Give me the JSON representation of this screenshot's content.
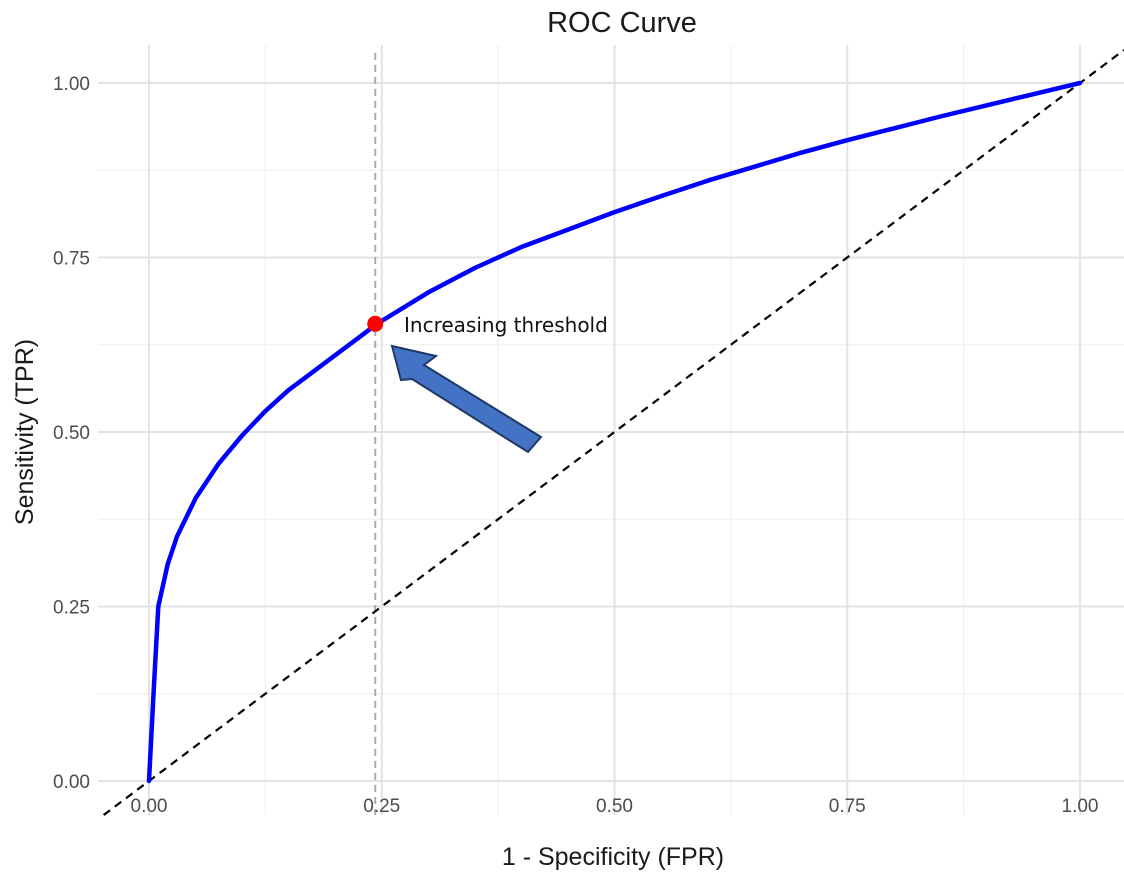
{
  "chart_data": {
    "type": "line",
    "title": "ROC Curve",
    "xlabel": "1 - Specificity (FPR)",
    "ylabel": "Sensitivity (TPR)",
    "xlim": [
      -0.05,
      1.05
    ],
    "ylim": [
      -0.05,
      1.05
    ],
    "x_ticks": [
      0,
      0.25,
      0.5,
      0.75,
      1
    ],
    "x_tick_labels": [
      "0.00",
      "0.25",
      "0.50",
      "0.75",
      "1.00"
    ],
    "y_ticks": [
      0,
      0.25,
      0.5,
      0.75,
      1
    ],
    "y_tick_labels": [
      "0.00",
      "0.25",
      "0.50",
      "0.75",
      "1.00"
    ],
    "grid": true,
    "series": [
      {
        "color": "#0000ff",
        "style": "solid",
        "points": [
          [
            0,
            0
          ],
          [
            0.005,
            0.13
          ],
          [
            0.01,
            0.25
          ],
          [
            0.02,
            0.31
          ],
          [
            0.03,
            0.35
          ],
          [
            0.05,
            0.405
          ],
          [
            0.075,
            0.455
          ],
          [
            0.1,
            0.495
          ],
          [
            0.125,
            0.53
          ],
          [
            0.15,
            0.56
          ],
          [
            0.175,
            0.585
          ],
          [
            0.2,
            0.61
          ],
          [
            0.225,
            0.635
          ],
          [
            0.245,
            0.655
          ],
          [
            0.3,
            0.7
          ],
          [
            0.35,
            0.735
          ],
          [
            0.4,
            0.765
          ],
          [
            0.45,
            0.79
          ],
          [
            0.5,
            0.815
          ],
          [
            0.55,
            0.838
          ],
          [
            0.6,
            0.86
          ],
          [
            0.65,
            0.88
          ],
          [
            0.7,
            0.9
          ],
          [
            0.75,
            0.918
          ],
          [
            0.8,
            0.935
          ],
          [
            0.85,
            0.952
          ],
          [
            0.9,
            0.968
          ],
          [
            0.95,
            0.984
          ],
          [
            1,
            1
          ]
        ]
      },
      {
        "color": "#000000",
        "style": "dashed",
        "points": [
          [
            -0.05,
            -0.05
          ],
          [
            1.05,
            1.05
          ]
        ]
      }
    ],
    "threshold_line": {
      "x": 0.243,
      "color": "#aaaaaa",
      "style": "dashed"
    },
    "highlight_point": {
      "x": 0.243,
      "y": 0.655,
      "color": "#ff0000"
    },
    "annotation": {
      "text": "Increasing threshold",
      "arrow_color": "#4472c4",
      "arrow_outline": "#1f3864"
    }
  }
}
